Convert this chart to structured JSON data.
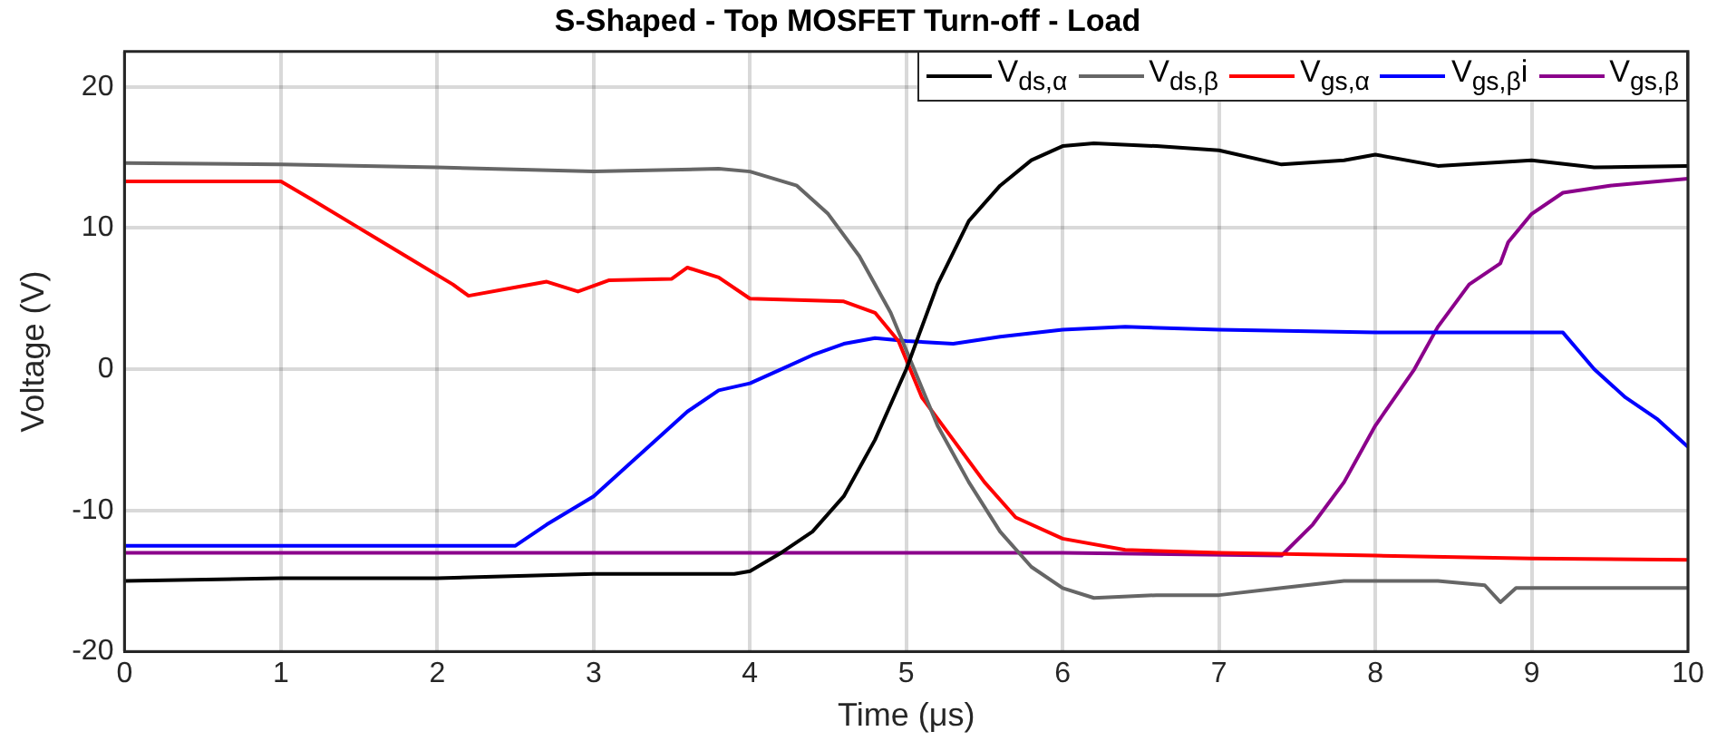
{
  "chart_data": {
    "type": "line",
    "title": "S-Shaped - Top MOSFET Turn-off - Load",
    "xlabel": "Time (μs)",
    "ylabel": "Voltage (V)",
    "xlim": [
      0,
      10
    ],
    "xticks": [
      0,
      1,
      2,
      3,
      4,
      5,
      6,
      7,
      8,
      9,
      10
    ],
    "ylim": [
      -20,
      22.5
    ],
    "yticks": [
      -20,
      -10,
      0,
      10,
      20
    ],
    "grid": true,
    "legend": "top right",
    "marker": "none",
    "line_style": "solid",
    "series": [
      {
        "name": "V$_{ds,α}$",
        "color": "#000000",
        "x": [
          0,
          1,
          2,
          3,
          3.9,
          4.0,
          4.2,
          4.4,
          4.6,
          4.8,
          5.0,
          5.2,
          5.4,
          5.6,
          5.8,
          6.0,
          6.2,
          6.6,
          7.0,
          7.4,
          7.8,
          8.0,
          8.4,
          9.0,
          9.4,
          10
        ],
        "values": [
          -15,
          -14.8,
          -14.8,
          -14.5,
          -14.5,
          -14.3,
          -13,
          -11.5,
          -9,
          -5,
          0,
          6,
          10.5,
          13,
          14.8,
          15.8,
          16,
          15.8,
          15.5,
          14.5,
          14.8,
          15.2,
          14.4,
          14.8,
          14.3,
          14.4
        ]
      },
      {
        "name": "V$_{ds,β}$",
        "color": "#666666",
        "x": [
          0,
          1,
          2,
          3,
          3.8,
          4.0,
          4.3,
          4.5,
          4.7,
          4.9,
          5.05,
          5.2,
          5.4,
          5.6,
          5.8,
          6.0,
          6.2,
          6.6,
          7.0,
          7.4,
          7.8,
          8.4,
          8.7,
          8.8,
          8.9,
          10
        ],
        "values": [
          14.6,
          14.5,
          14.3,
          14.0,
          14.2,
          14.0,
          13,
          11,
          8,
          4,
          0,
          -4,
          -8,
          -11.5,
          -14,
          -15.5,
          -16.2,
          -16,
          -16,
          -15.5,
          -15,
          -15,
          -15.3,
          -16.5,
          -15.5,
          -15.5
        ]
      },
      {
        "name": "V$_{gs,α}$",
        "color": "#ff0000",
        "x": [
          0,
          1,
          1.2,
          1.5,
          1.8,
          2.1,
          2.2,
          2.5,
          2.7,
          2.9,
          3.1,
          3.5,
          3.6,
          3.8,
          4.0,
          4.6,
          4.8,
          4.95,
          5.1,
          5.3,
          5.5,
          5.7,
          6.0,
          6.4,
          7,
          8,
          9,
          10
        ],
        "values": [
          13.3,
          13.3,
          12,
          10,
          8,
          6,
          5.2,
          5.8,
          6.2,
          5.5,
          6.3,
          6.4,
          7.2,
          6.5,
          5,
          4.8,
          4,
          2,
          -2,
          -5,
          -8,
          -10.5,
          -12,
          -12.8,
          -13,
          -13.2,
          -13.4,
          -13.5
        ]
      },
      {
        "name": "V$_{gs,β}$i",
        "color": "#0000ff",
        "x": [
          0,
          1,
          2,
          2.5,
          2.7,
          3,
          3.3,
          3.6,
          3.8,
          4.0,
          4.2,
          4.4,
          4.6,
          4.8,
          5.0,
          5.3,
          5.6,
          6.0,
          6.4,
          7,
          8,
          9.2,
          9.4,
          9.6,
          9.8,
          10
        ],
        "values": [
          -12.5,
          -12.5,
          -12.5,
          -12.5,
          -11,
          -9,
          -6,
          -3,
          -1.5,
          -1,
          0,
          1,
          1.8,
          2.2,
          2,
          1.8,
          2.3,
          2.8,
          3,
          2.8,
          2.6,
          2.6,
          0,
          -2,
          -3.5,
          -5.5
        ]
      },
      {
        "name": "V$_{gs,β}$",
        "color": "#8b008b",
        "x": [
          0,
          2,
          4,
          6,
          7.4,
          7.6,
          7.8,
          8.0,
          8.25,
          8.4,
          8.6,
          8.8,
          8.85,
          9.0,
          9.2,
          9.5,
          10
        ],
        "values": [
          -13,
          -13,
          -13,
          -13,
          -13.2,
          -11,
          -8,
          -4,
          0,
          3,
          6,
          7.5,
          9,
          11,
          12.5,
          13,
          13.5
        ]
      }
    ]
  }
}
